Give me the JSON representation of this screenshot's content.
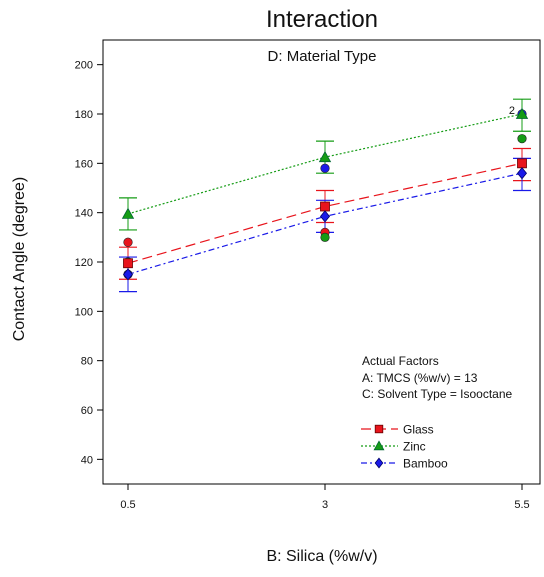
{
  "chart_data": {
    "type": "line",
    "title": "Interaction",
    "subtitle": "D: Material Type",
    "xlabel": "B: Silica (%w/v)",
    "ylabel": "Contact Angle (degree)",
    "x": [
      0.5,
      3,
      5.5
    ],
    "x_tick_labels": [
      "0.5",
      "3",
      "5.5"
    ],
    "ylim": [
      30,
      210
    ],
    "y_ticks": [
      40,
      60,
      80,
      100,
      120,
      140,
      160,
      180,
      200
    ],
    "series": [
      {
        "name": "Glass",
        "color": "#e8141c",
        "marker": "square",
        "line": "long-dash",
        "values": [
          119.5,
          142.5,
          160
        ],
        "ci_low": [
          113,
          136,
          153
        ],
        "ci_high": [
          126,
          149,
          166
        ],
        "observed": [
          128,
          132,
          160
        ]
      },
      {
        "name": "Zinc",
        "color": "#159c15",
        "marker": "triangle",
        "line": "dotted",
        "values": [
          139.5,
          162.5,
          180
        ],
        "ci_low": [
          133,
          156,
          173
        ],
        "ci_high": [
          146,
          169,
          186
        ],
        "observed": [
          120,
          130,
          170
        ]
      },
      {
        "name": "Bamboo",
        "color": "#1a1ae8",
        "marker": "diamond",
        "line": "dash-dot",
        "values": [
          115,
          138.5,
          156
        ],
        "ci_low": [
          108,
          132,
          149
        ],
        "ci_high": [
          122,
          145,
          162
        ],
        "observed": [
          115,
          158,
          180
        ]
      }
    ],
    "point_annotation": {
      "text": "2",
      "x": 5.5,
      "y": 182
    },
    "actual_factors": {
      "heading": "Actual Factors",
      "lines": [
        "A: TMCS (%w/v) = 13",
        "C: Solvent Type = Isooctane"
      ]
    },
    "legend": {
      "placement": "bottom-right",
      "entries": [
        {
          "label": "Glass",
          "text_color": "#1a1ae8"
        },
        {
          "label": "Zinc",
          "text_color": "#159c15"
        },
        {
          "label": "Bamboo",
          "text_color": "#e8141c"
        }
      ]
    },
    "grid": false
  }
}
